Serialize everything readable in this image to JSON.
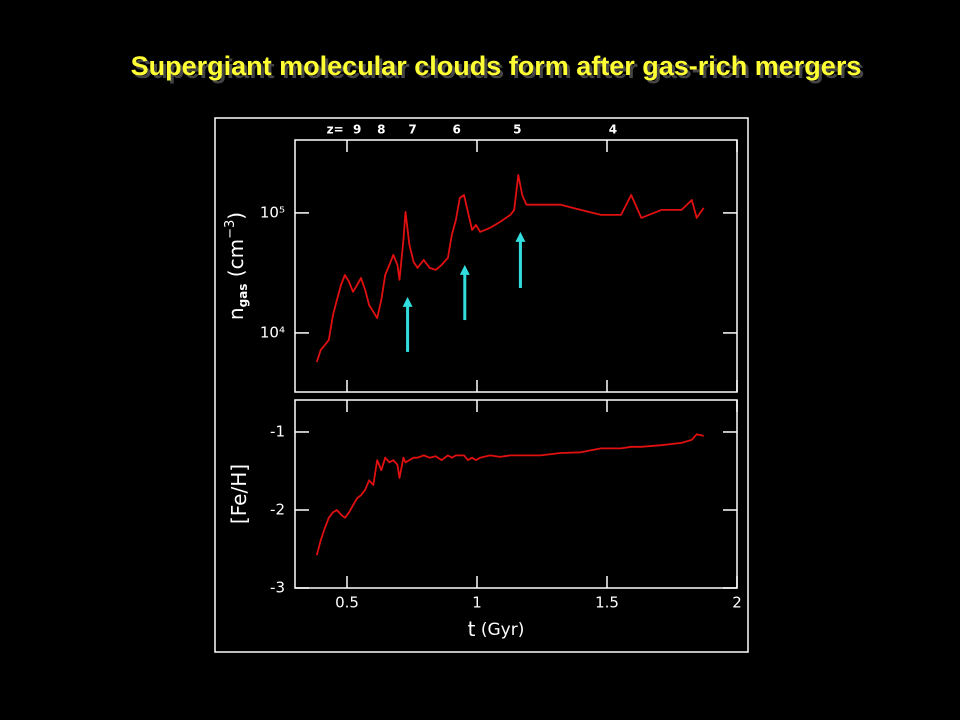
{
  "title": "Supergiant molecular clouds form after gas-rich mergers",
  "chart_data": [
    {
      "type": "line",
      "log_y": true,
      "ylabel": [
        "n",
        "gas",
        " (cm",
        "−3",
        ")"
      ],
      "top_axis": {
        "label": "z=",
        "ticks": [
          {
            "value": 0.539,
            "label": "9"
          },
          {
            "value": 0.632,
            "label": "8"
          },
          {
            "value": 0.752,
            "label": "7"
          },
          {
            "value": 0.922,
            "label": "6"
          },
          {
            "value": 1.155,
            "label": "5"
          },
          {
            "value": 1.523,
            "label": "4"
          }
        ]
      },
      "xlim": [
        0.3,
        2.0
      ],
      "xticks": [
        0.5,
        1,
        1.5,
        2
      ],
      "ylim": [
        3220,
        405000
      ],
      "yticks": [
        {
          "value": 10000,
          "label": "10⁴"
        },
        {
          "value": 100000,
          "label": "10⁵"
        }
      ],
      "x": [
        0.384,
        0.399,
        0.415,
        0.43,
        0.446,
        0.461,
        0.477,
        0.492,
        0.508,
        0.523,
        0.539,
        0.554,
        0.57,
        0.585,
        0.601,
        0.616,
        0.632,
        0.647,
        0.663,
        0.678,
        0.694,
        0.702,
        0.717,
        0.725,
        0.74,
        0.756,
        0.771,
        0.795,
        0.818,
        0.841,
        0.864,
        0.888,
        0.903,
        0.919,
        0.934,
        0.95,
        0.965,
        0.981,
        0.996,
        1.012,
        1.05,
        1.089,
        1.128,
        1.143,
        1.159,
        1.174,
        1.19,
        1.244,
        1.322,
        1.399,
        1.477,
        1.554,
        1.593,
        1.632,
        1.709,
        1.787,
        1.826,
        1.845,
        1.872
      ],
      "series": [
        {
          "color": "#e01010",
          "values": [
            5730,
            7210,
            7940,
            8750,
            14100,
            18800,
            25100,
            30400,
            26600,
            22000,
            25100,
            28700,
            22800,
            17100,
            15000,
            13300,
            18800,
            30400,
            36900,
            44700,
            36900,
            27700,
            59600,
            102000,
            54100,
            39100,
            34800,
            40600,
            34800,
            33500,
            36900,
            42200,
            65600,
            87500,
            133000,
            141000,
            102000,
            72200,
            79400,
            69500,
            75000,
            84100,
            96200,
            106000,
            207000,
            141000,
            117000,
            117000,
            117000,
            106000,
            96200,
            96200,
            141000,
            90900,
            106000,
            106000,
            128000,
            90900,
            110000
          ]
        }
      ],
      "arrows": {
        "color": "#33dddd",
        "items": [
          {
            "x": 0.733,
            "y": [
              6950,
              19950
            ]
          },
          {
            "x": 0.953,
            "y": [
              12800,
              36900
            ]
          },
          {
            "x": 1.167,
            "y": [
              23700,
              69500
            ]
          }
        ]
      }
    },
    {
      "type": "line",
      "log_y": false,
      "ylabel": [
        "[Fe/H]"
      ],
      "xlabel": [
        "t",
        " (Gyr)"
      ],
      "xlim": [
        0.3,
        2.0
      ],
      "xticks": [
        0.5,
        1,
        1.5,
        2
      ],
      "ylim": [
        -3,
        -0.59
      ],
      "yticks": [
        -1,
        -2,
        -3
      ],
      "x": [
        0.384,
        0.399,
        0.415,
        0.43,
        0.446,
        0.461,
        0.477,
        0.492,
        0.508,
        0.523,
        0.539,
        0.554,
        0.57,
        0.585,
        0.601,
        0.616,
        0.632,
        0.647,
        0.663,
        0.678,
        0.694,
        0.702,
        0.717,
        0.725,
        0.74,
        0.756,
        0.771,
        0.795,
        0.818,
        0.841,
        0.864,
        0.888,
        0.903,
        0.919,
        0.934,
        0.95,
        0.965,
        0.981,
        0.996,
        1.012,
        1.05,
        1.089,
        1.128,
        1.143,
        1.159,
        1.174,
        1.19,
        1.244,
        1.322,
        1.399,
        1.477,
        1.554,
        1.593,
        1.632,
        1.709,
        1.787,
        1.826,
        1.845,
        1.872
      ],
      "series": [
        {
          "color": "#e01010",
          "values": [
            -2.58,
            -2.39,
            -2.23,
            -2.1,
            -2.03,
            -2.0,
            -2.06,
            -2.1,
            -2.03,
            -1.94,
            -1.85,
            -1.81,
            -1.74,
            -1.62,
            -1.68,
            -1.36,
            -1.49,
            -1.33,
            -1.39,
            -1.36,
            -1.42,
            -1.59,
            -1.33,
            -1.39,
            -1.36,
            -1.33,
            -1.33,
            -1.3,
            -1.33,
            -1.31,
            -1.36,
            -1.3,
            -1.33,
            -1.3,
            -1.3,
            -1.3,
            -1.36,
            -1.33,
            -1.36,
            -1.33,
            -1.3,
            -1.32,
            -1.3,
            -1.3,
            -1.3,
            -1.3,
            -1.3,
            -1.3,
            -1.27,
            -1.26,
            -1.21,
            -1.21,
            -1.19,
            -1.19,
            -1.17,
            -1.14,
            -1.1,
            -1.03,
            -1.05
          ]
        }
      ]
    }
  ]
}
